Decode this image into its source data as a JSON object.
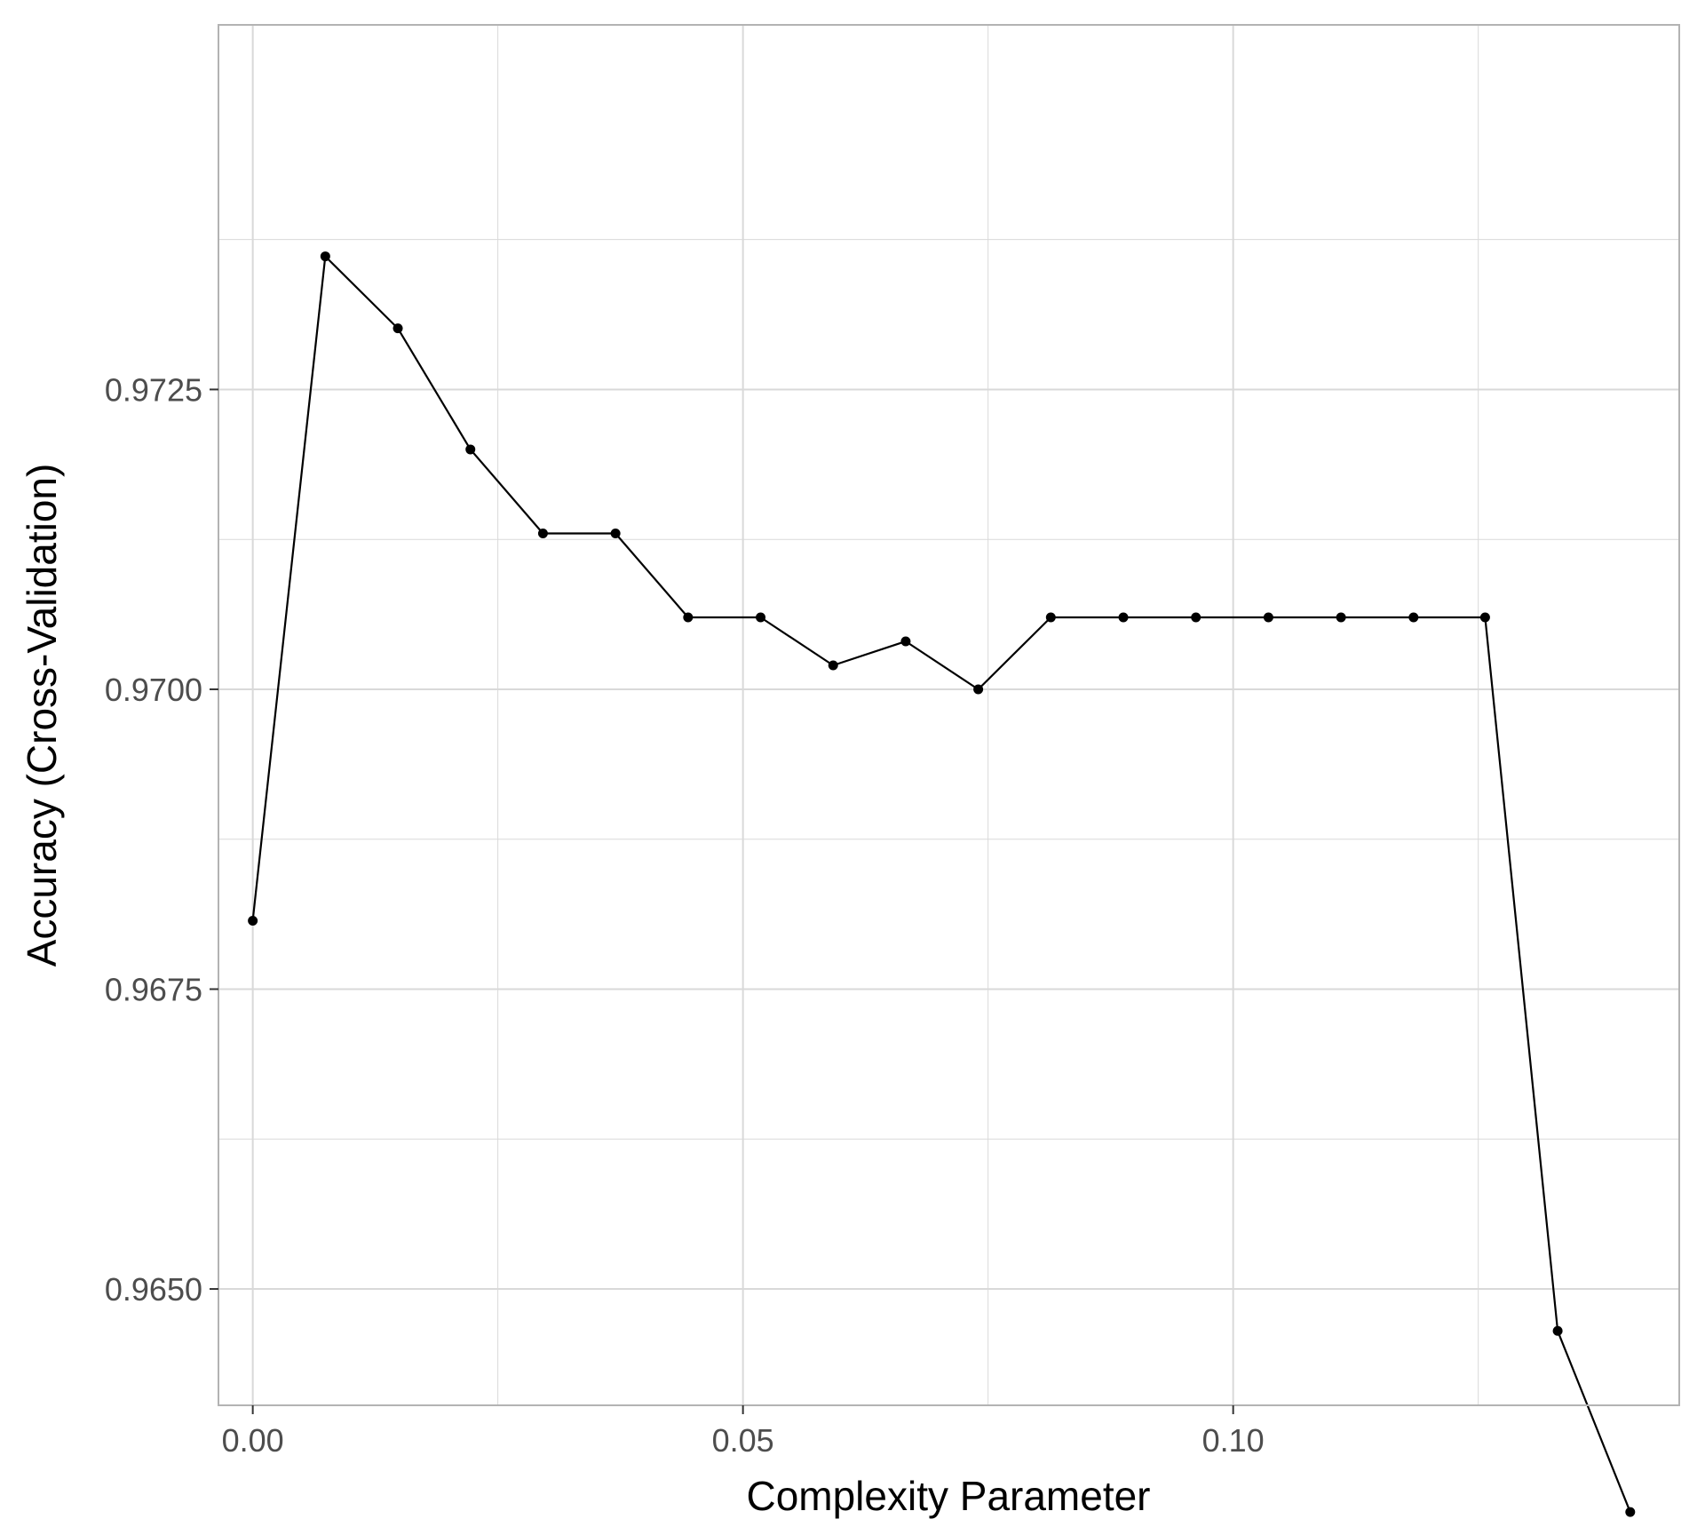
{
  "chart_data": {
    "type": "line",
    "xlabel": "Complexity Parameter",
    "ylabel": "Accuracy (Cross-Validation)",
    "xlim": [
      -0.0035,
      0.1455
    ],
    "ylim": [
      0.96403,
      0.97554
    ],
    "x_ticks": [
      0.0,
      0.05,
      0.1
    ],
    "x_tick_labels": [
      "0.00",
      "0.05",
      "0.10"
    ],
    "y_ticks": [
      0.965,
      0.9675,
      0.97,
      0.9725
    ],
    "y_tick_labels": [
      "0.9650",
      "0.9675",
      "0.9700",
      "0.9725"
    ],
    "grid": true,
    "legend": "none",
    "colors": {
      "line": "#000000",
      "point": "#000000",
      "grid": "#d9d9d9",
      "panel_border": "#b3b3b3",
      "background": "#ffffff"
    },
    "x": [
      0.0,
      0.0074,
      0.0148,
      0.0222,
      0.0296,
      0.037,
      0.0444,
      0.0518,
      0.0592,
      0.0666,
      0.074,
      0.0814,
      0.0888,
      0.0962,
      0.1036,
      0.111,
      0.1184,
      0.1257,
      0.1331,
      0.1405
    ],
    "series": [
      {
        "values": [
          0.96807,
          0.97361,
          0.97301,
          0.972,
          0.9713,
          0.9713,
          0.9706,
          0.9706,
          0.9702,
          0.9704,
          0.97,
          0.9706,
          0.9706,
          0.9706,
          0.9706,
          0.9706,
          0.9706,
          0.9706,
          0.96465,
          0.96314
        ]
      }
    ]
  }
}
